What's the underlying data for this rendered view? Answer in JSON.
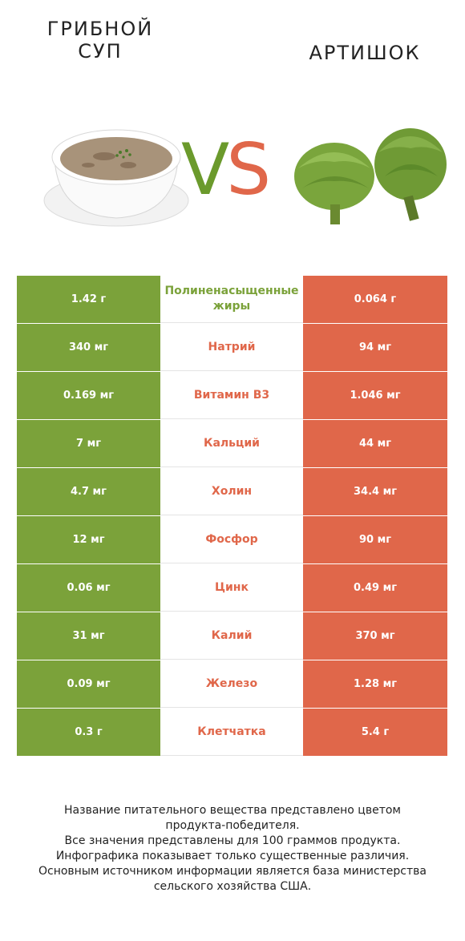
{
  "left_food": {
    "title_line1": "ГРИБНОЙ",
    "title_line2": "СУП"
  },
  "right_food": {
    "title": "АРТИШОК"
  },
  "vs": {
    "v": "V",
    "s": "S"
  },
  "colors": {
    "left": "#7ba23a",
    "right": "#e0674a"
  },
  "rows": [
    {
      "left": "1.42 г",
      "nutrient": "Полиненасыщенные жиры",
      "right": "0.064 г",
      "winner": "left"
    },
    {
      "left": "340 мг",
      "nutrient": "Натрий",
      "right": "94 мг",
      "winner": "right"
    },
    {
      "left": "0.169 мг",
      "nutrient": "Витамин B3",
      "right": "1.046 мг",
      "winner": "right"
    },
    {
      "left": "7 мг",
      "nutrient": "Кальций",
      "right": "44 мг",
      "winner": "right"
    },
    {
      "left": "4.7 мг",
      "nutrient": "Холин",
      "right": "34.4 мг",
      "winner": "right"
    },
    {
      "left": "12 мг",
      "nutrient": "Фосфор",
      "right": "90 мг",
      "winner": "right"
    },
    {
      "left": "0.06 мг",
      "nutrient": "Цинк",
      "right": "0.49 мг",
      "winner": "right"
    },
    {
      "left": "31 мг",
      "nutrient": "Калий",
      "right": "370 мг",
      "winner": "right"
    },
    {
      "left": "0.09 мг",
      "nutrient": "Железо",
      "right": "1.28 мг",
      "winner": "right"
    },
    {
      "left": "0.3 г",
      "nutrient": "Клетчатка",
      "right": "5.4 г",
      "winner": "right"
    }
  ],
  "footnote": {
    "line1": "Название питательного вещества представлено цветом",
    "line2": "продукта-победителя.",
    "line3": "Все значения представлены для 100 граммов продукта.",
    "line4": "Инфографика показывает только существенные различия.",
    "line5": "Основным источником информации является база министерства",
    "line6": "сельского хозяйства США."
  }
}
